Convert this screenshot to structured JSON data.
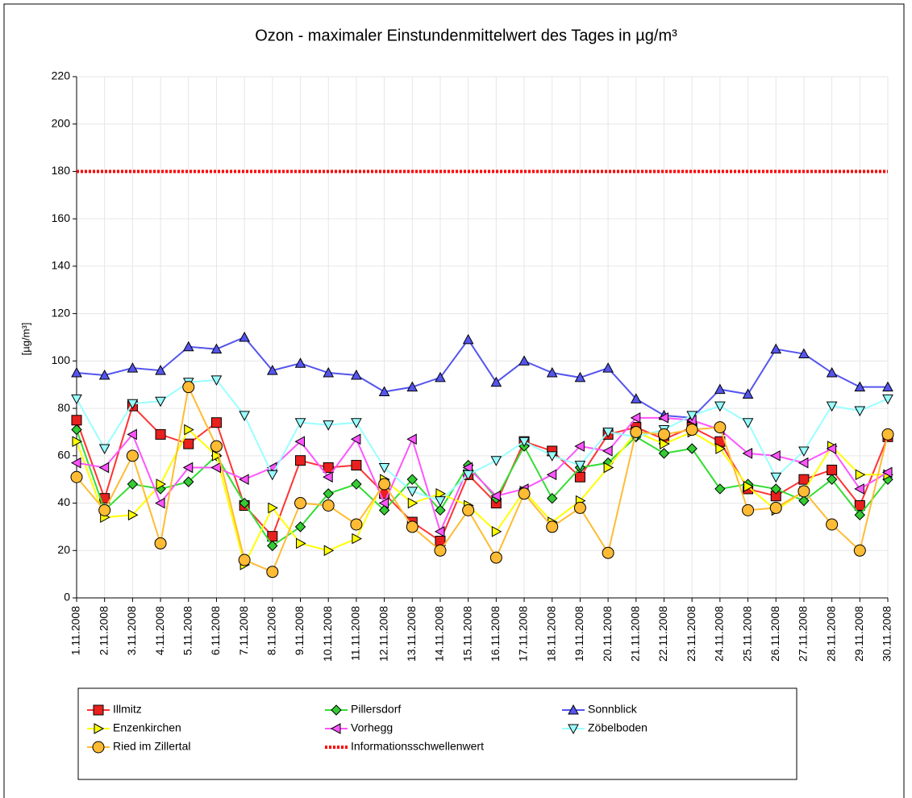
{
  "chart_data": {
    "type": "line",
    "title": "Ozon -  maximaler Einstundenmittelwert des Tages in µg/m³",
    "y_label": "[µg/m³]",
    "categories": [
      "1.11.2008",
      "2.11.2008",
      "3.11.2008",
      "4.11.2008",
      "5.11.2008",
      "6.11.2008",
      "7.11.2008",
      "8.11.2008",
      "9.11.2008",
      "10.11.2008",
      "11.11.2008",
      "12.11.2008",
      "13.11.2008",
      "14.11.2008",
      "15.11.2008",
      "16.11.2008",
      "17.11.2008",
      "18.11.2008",
      "19.11.2008",
      "20.11.2008",
      "21.11.2008",
      "22.11.2008",
      "23.11.2008",
      "24.11.2008",
      "25.11.2008",
      "26.11.2008",
      "27.11.2008",
      "28.11.2008",
      "29.11.2008",
      "30.11.2008"
    ],
    "ylim": [
      0,
      220
    ],
    "yticks": [
      0,
      20,
      40,
      60,
      80,
      100,
      120,
      140,
      160,
      180,
      200,
      220
    ],
    "grid": true,
    "series": [
      {
        "name": "Illmitz",
        "color": "#ff3333",
        "marker": "square",
        "marker_color": "#e8201e",
        "values": [
          75,
          42,
          81,
          69,
          65,
          74,
          39,
          26,
          58,
          55,
          56,
          44,
          32,
          24,
          52,
          40,
          66,
          62,
          51,
          69,
          72,
          67,
          72,
          66,
          46,
          43,
          50,
          54,
          39,
          68
        ]
      },
      {
        "name": "Pillersdorf",
        "color": "#33dd33",
        "marker": "diamond",
        "marker_color": "#33cc33",
        "values": [
          71,
          37,
          48,
          46,
          49,
          60,
          40,
          22,
          30,
          44,
          48,
          37,
          50,
          37,
          56,
          42,
          64,
          42,
          55,
          57,
          68,
          61,
          63,
          46,
          48,
          46,
          41,
          50,
          35,
          50
        ]
      },
      {
        "name": "Sonnblick",
        "color": "#5555ee",
        "marker": "triangle-up",
        "marker_color": "#5555ee",
        "values": [
          95,
          94,
          97,
          96,
          106,
          105,
          110,
          96,
          99,
          95,
          94,
          87,
          89,
          93,
          109,
          91,
          100,
          95,
          93,
          97,
          84,
          77,
          76,
          88,
          86,
          105,
          103,
          95,
          89,
          89
        ]
      },
      {
        "name": "Enzenkirchen",
        "color": "#ffff00",
        "marker": "triangle-right",
        "marker_color": "#ffff00",
        "values": [
          66,
          34,
          35,
          48,
          71,
          60,
          14,
          38,
          23,
          20,
          25,
          50,
          40,
          44,
          39,
          28,
          45,
          32,
          41,
          55,
          70,
          65,
          70,
          63,
          47,
          37,
          45,
          64,
          52,
          52
        ]
      },
      {
        "name": "Vorhegg",
        "color": "#ff55ff",
        "marker": "triangle-left",
        "marker_color": "#ff55ff",
        "values": [
          57,
          55,
          69,
          40,
          55,
          55,
          50,
          55,
          66,
          51,
          67,
          40,
          67,
          28,
          55,
          43,
          46,
          52,
          64,
          62,
          76,
          76,
          75,
          71,
          61,
          60,
          57,
          63,
          46,
          53
        ]
      },
      {
        "name": "Zöbelboden",
        "color": "#99ffff",
        "marker": "triangle-down",
        "marker_color": "#99ffff",
        "values": [
          84,
          63,
          82,
          83,
          91,
          92,
          77,
          52,
          74,
          73,
          74,
          55,
          45,
          41,
          52,
          58,
          66,
          60,
          56,
          70,
          68,
          71,
          77,
          81,
          74,
          51,
          62,
          81,
          79,
          84
        ]
      },
      {
        "name": "Ried im Zillertal",
        "color": "#ffbb33",
        "marker": "circle",
        "marker_color": "#ffbb33",
        "values": [
          51,
          37,
          60,
          23,
          89,
          64,
          16,
          11,
          40,
          39,
          31,
          48,
          30,
          20,
          37,
          17,
          44,
          30,
          38,
          19,
          70,
          69,
          71,
          72,
          37,
          38,
          45,
          31,
          20,
          69
        ]
      }
    ],
    "reference_lines": [
      {
        "name": "Informationsschwellenwert",
        "color": "#ff0000",
        "value": 180,
        "style": "dotted"
      }
    ]
  }
}
